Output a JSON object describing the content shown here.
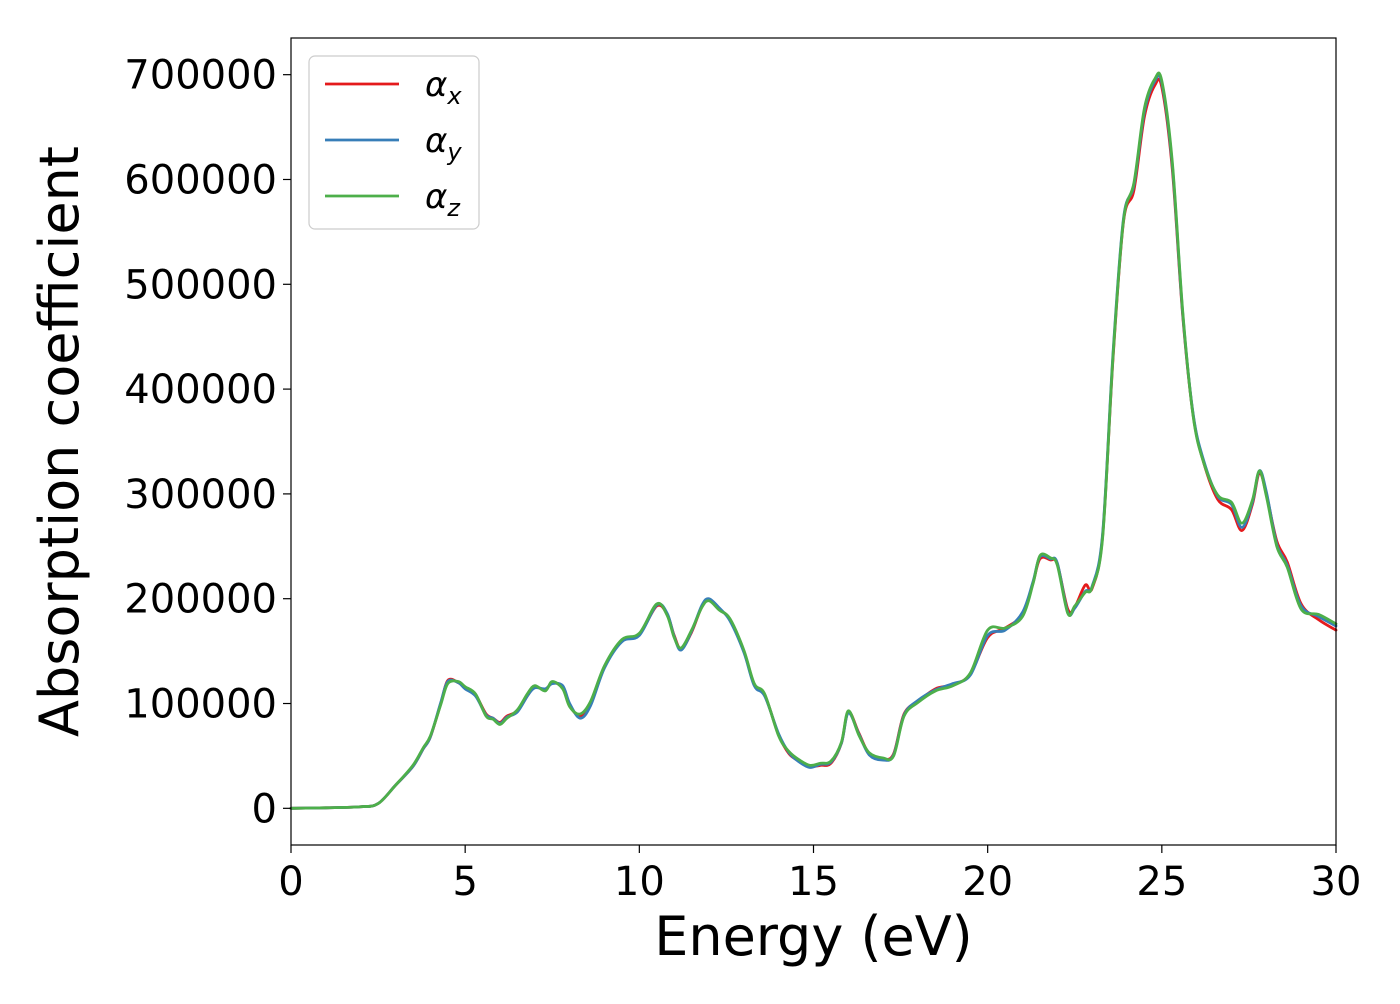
{
  "chart_data": {
    "type": "line",
    "title": "",
    "xlabel": "Energy (eV)",
    "ylabel": "Absorption coefficient",
    "xlim": [
      0,
      30
    ],
    "ylim": [
      -35000,
      735000
    ],
    "xticks": [
      0,
      5,
      10,
      15,
      20,
      25,
      30
    ],
    "yticks": [
      0,
      100000,
      200000,
      300000,
      400000,
      500000,
      600000,
      700000
    ],
    "grid": false,
    "legend_position": "top-left",
    "series": [
      {
        "name": "α_x",
        "label_base": "α",
        "label_sub": "x",
        "color": "#e41a1c",
        "x": [
          0,
          1,
          2,
          2.5,
          3,
          3.5,
          3.8,
          4,
          4.3,
          4.5,
          4.8,
          5,
          5.3,
          5.6,
          5.8,
          6,
          6.2,
          6.5,
          6.8,
          7,
          7.3,
          7.5,
          7.8,
          8,
          8.3,
          8.6,
          9,
          9.5,
          10,
          10.5,
          10.8,
          11,
          11.2,
          11.5,
          11.8,
          12,
          12.3,
          12.6,
          13,
          13.3,
          13.6,
          14,
          14.3,
          14.6,
          14.9,
          15.2,
          15.5,
          15.8,
          16,
          16.3,
          16.6,
          17,
          17.3,
          17.6,
          18,
          18.5,
          19,
          19.5,
          20,
          20.5,
          21,
          21.3,
          21.5,
          21.8,
          22,
          22.3,
          22.5,
          22.8,
          23,
          23.3,
          23.6,
          23.9,
          24.2,
          24.5,
          24.8,
          25,
          25.3,
          25.6,
          25.9,
          26.2,
          26.6,
          27,
          27.3,
          27.6,
          27.8,
          28,
          28.3,
          28.6,
          29,
          29.5,
          30
        ],
        "values": [
          0,
          500,
          1500,
          4500,
          22000,
          40000,
          57000,
          68000,
          100000,
          122000,
          120000,
          115000,
          108000,
          90000,
          86000,
          82000,
          88000,
          93000,
          108000,
          116000,
          113000,
          120000,
          115000,
          98000,
          88000,
          100000,
          135000,
          160000,
          166000,
          193000,
          185000,
          165000,
          152000,
          168000,
          193000,
          199000,
          190000,
          180000,
          150000,
          118000,
          108000,
          70000,
          52000,
          45000,
          40000,
          41000,
          43000,
          62000,
          92000,
          72000,
          52000,
          47000,
          52000,
          90000,
          102000,
          114000,
          118000,
          128000,
          163000,
          172000,
          185000,
          215000,
          238000,
          237000,
          233000,
          190000,
          192000,
          213000,
          210000,
          260000,
          430000,
          560000,
          590000,
          660000,
          690000,
          688000,
          610000,
          470000,
          375000,
          330000,
          295000,
          285000,
          265000,
          290000,
          320000,
          300000,
          255000,
          235000,
          195000,
          180000,
          170000
        ]
      },
      {
        "name": "α_y",
        "label_base": "α",
        "label_sub": "y",
        "color": "#377eb8",
        "x": [
          0,
          1,
          2,
          2.5,
          3,
          3.5,
          3.8,
          4,
          4.3,
          4.5,
          4.8,
          5,
          5.3,
          5.6,
          5.8,
          6,
          6.2,
          6.5,
          6.8,
          7,
          7.3,
          7.5,
          7.8,
          8,
          8.3,
          8.6,
          9,
          9.5,
          10,
          10.5,
          10.8,
          11,
          11.2,
          11.5,
          11.8,
          12,
          12.3,
          12.6,
          13,
          13.3,
          13.6,
          14,
          14.3,
          14.6,
          14.9,
          15.2,
          15.5,
          15.8,
          16,
          16.3,
          16.6,
          17,
          17.3,
          17.6,
          18,
          18.5,
          19,
          19.5,
          20,
          20.5,
          21,
          21.3,
          21.5,
          21.8,
          22,
          22.3,
          22.5,
          22.8,
          23,
          23.3,
          23.6,
          23.9,
          24.2,
          24.5,
          24.8,
          25,
          25.3,
          25.6,
          25.9,
          26.2,
          26.6,
          27,
          27.3,
          27.6,
          27.8,
          28,
          28.3,
          28.6,
          29,
          29.5,
          30
        ],
        "values": [
          0,
          500,
          1500,
          4500,
          22000,
          40000,
          57000,
          68000,
          101000,
          121000,
          120000,
          114000,
          107000,
          89000,
          86000,
          81000,
          87000,
          92000,
          108000,
          115000,
          114000,
          119000,
          117000,
          100000,
          86000,
          98000,
          134000,
          159000,
          165000,
          194000,
          186000,
          164000,
          151000,
          169000,
          194000,
          200000,
          191000,
          179000,
          149000,
          117000,
          107000,
          71000,
          53000,
          44000,
          39000,
          42000,
          44000,
          62000,
          91000,
          71000,
          51000,
          46000,
          51000,
          89000,
          103000,
          113000,
          119000,
          127000,
          165000,
          170000,
          187000,
          216000,
          240000,
          238000,
          234000,
          187000,
          191000,
          207000,
          212000,
          262000,
          435000,
          563000,
          595000,
          665000,
          694000,
          692000,
          614000,
          472000,
          376000,
          332000,
          298000,
          290000,
          268000,
          292000,
          322000,
          302000,
          252000,
          232000,
          193000,
          183000,
          174000
        ]
      },
      {
        "name": "α_z",
        "label_base": "α",
        "label_sub": "z",
        "color": "#4daf4a",
        "x": [
          0,
          1,
          2,
          2.5,
          3,
          3.5,
          3.8,
          4,
          4.3,
          4.5,
          4.8,
          5,
          5.3,
          5.6,
          5.8,
          6,
          6.2,
          6.5,
          6.8,
          7,
          7.3,
          7.5,
          7.8,
          8,
          8.3,
          8.6,
          9,
          9.5,
          10,
          10.5,
          10.8,
          11,
          11.2,
          11.5,
          11.8,
          12,
          12.3,
          12.6,
          13,
          13.3,
          13.6,
          14,
          14.3,
          14.6,
          14.9,
          15.2,
          15.5,
          15.8,
          16,
          16.3,
          16.6,
          17,
          17.3,
          17.6,
          18,
          18.5,
          19,
          19.5,
          20,
          20.5,
          21,
          21.3,
          21.5,
          21.8,
          22,
          22.3,
          22.5,
          22.8,
          23,
          23.3,
          23.6,
          23.9,
          24.2,
          24.5,
          24.8,
          25,
          25.3,
          25.6,
          25.9,
          26.2,
          26.6,
          27,
          27.3,
          27.6,
          27.8,
          28,
          28.3,
          28.6,
          29,
          29.5,
          30
        ],
        "values": [
          0,
          500,
          1500,
          4500,
          22000,
          41000,
          58000,
          69000,
          99000,
          119000,
          121000,
          116000,
          109000,
          88000,
          85000,
          80000,
          86000,
          94000,
          110000,
          117000,
          112000,
          121000,
          114000,
          97000,
          90000,
          102000,
          136000,
          161000,
          167000,
          195000,
          184000,
          163000,
          153000,
          170000,
          192000,
          198000,
          189000,
          181000,
          151000,
          119000,
          109000,
          69000,
          54000,
          46000,
          41000,
          43000,
          45000,
          63000,
          93000,
          70000,
          53000,
          48000,
          50000,
          88000,
          101000,
          112000,
          117000,
          129000,
          170000,
          172000,
          183000,
          214000,
          241000,
          239000,
          232000,
          186000,
          193000,
          206000,
          211000,
          258000,
          432000,
          561000,
          597000,
          668000,
          696000,
          694000,
          617000,
          474000,
          374000,
          330000,
          299000,
          292000,
          272000,
          294000,
          322000,
          298000,
          250000,
          230000,
          190000,
          185000,
          176000
        ]
      }
    ]
  }
}
